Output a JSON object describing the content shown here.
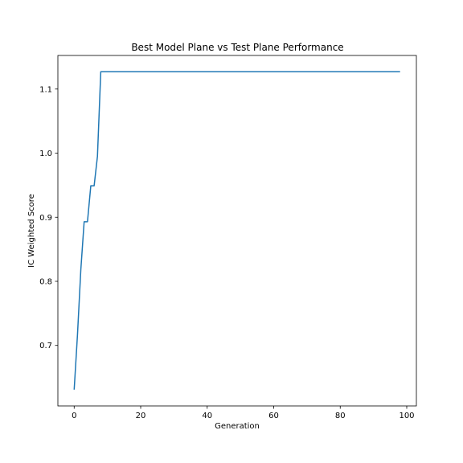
{
  "chart_data": {
    "type": "line",
    "title": "Best Model Plane vs Test Plane Performance",
    "xlabel": "Generation",
    "ylabel": "IC Weighted Score",
    "xlim": [
      -4.9,
      102.9
    ],
    "ylim": [
      0.6056,
      1.1524
    ],
    "xticks": [
      0,
      20,
      40,
      60,
      80,
      100
    ],
    "yticks": [
      0.7,
      0.8,
      0.9,
      1.0,
      1.1
    ],
    "xtick_labels": [
      "0",
      "20",
      "40",
      "60",
      "80",
      "100"
    ],
    "ytick_labels": [
      "0.7",
      "0.8",
      "0.9",
      "1.0",
      "1.1"
    ],
    "grid": false,
    "series": [
      {
        "color": "#1f77b4",
        "x": [
          0,
          1,
          2,
          3,
          4,
          5,
          6,
          7,
          8,
          98
        ],
        "y": [
          0.631,
          0.717,
          0.818,
          0.893,
          0.893,
          0.949,
          0.949,
          0.995,
          1.127,
          1.127
        ]
      }
    ]
  }
}
